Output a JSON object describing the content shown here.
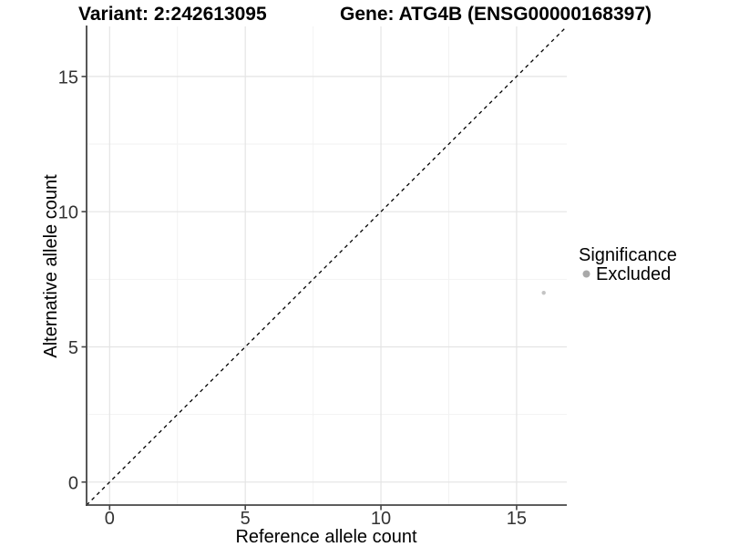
{
  "header": {
    "variant_title": "Variant: 2:242613095",
    "gene_title": "Gene: ATG4B (ENSG00000168397)"
  },
  "axes": {
    "x_label": "Reference allele count",
    "y_label": "Alternative allele count"
  },
  "legend": {
    "title": "Significance",
    "items": [
      {
        "label": "Excluded",
        "color": "#a9a9a9"
      }
    ]
  },
  "colors": {
    "background": "#ffffff",
    "grid_major": "#e4e4e4",
    "grid_minor": "#f2f2f2",
    "axis_line": "#464646",
    "tick_label": "#333333",
    "identity_line": "#000000",
    "point": "#c4c4c4",
    "legend_point": "#a9a9a9"
  },
  "chart_data": {
    "type": "scatter",
    "title": "Variant: 2:242613095   Gene: ATG4B (ENSG00000168397)",
    "xlabel": "Reference allele count",
    "ylabel": "Alternative allele count",
    "xlim": [
      -0.85,
      16.85
    ],
    "ylim": [
      -0.85,
      16.85
    ],
    "x_ticks": [
      0,
      5,
      10,
      15
    ],
    "y_ticks": [
      0,
      5,
      10,
      15
    ],
    "x_minor_ticks": [
      2.5,
      7.5,
      12.5
    ],
    "y_minor_ticks": [
      2.5,
      7.5,
      12.5
    ],
    "grid": true,
    "series": [
      {
        "name": "Excluded",
        "color": "#c4c4c4",
        "point_radius": 2.2,
        "points": [
          {
            "x": 16,
            "y": 7
          }
        ]
      }
    ],
    "reference_line": {
      "type": "abline",
      "slope": 1,
      "intercept": 0,
      "style": "dashed",
      "color": "#000000"
    },
    "legend": {
      "title": "Significance",
      "entries": [
        "Excluded"
      ],
      "position": "right"
    }
  }
}
